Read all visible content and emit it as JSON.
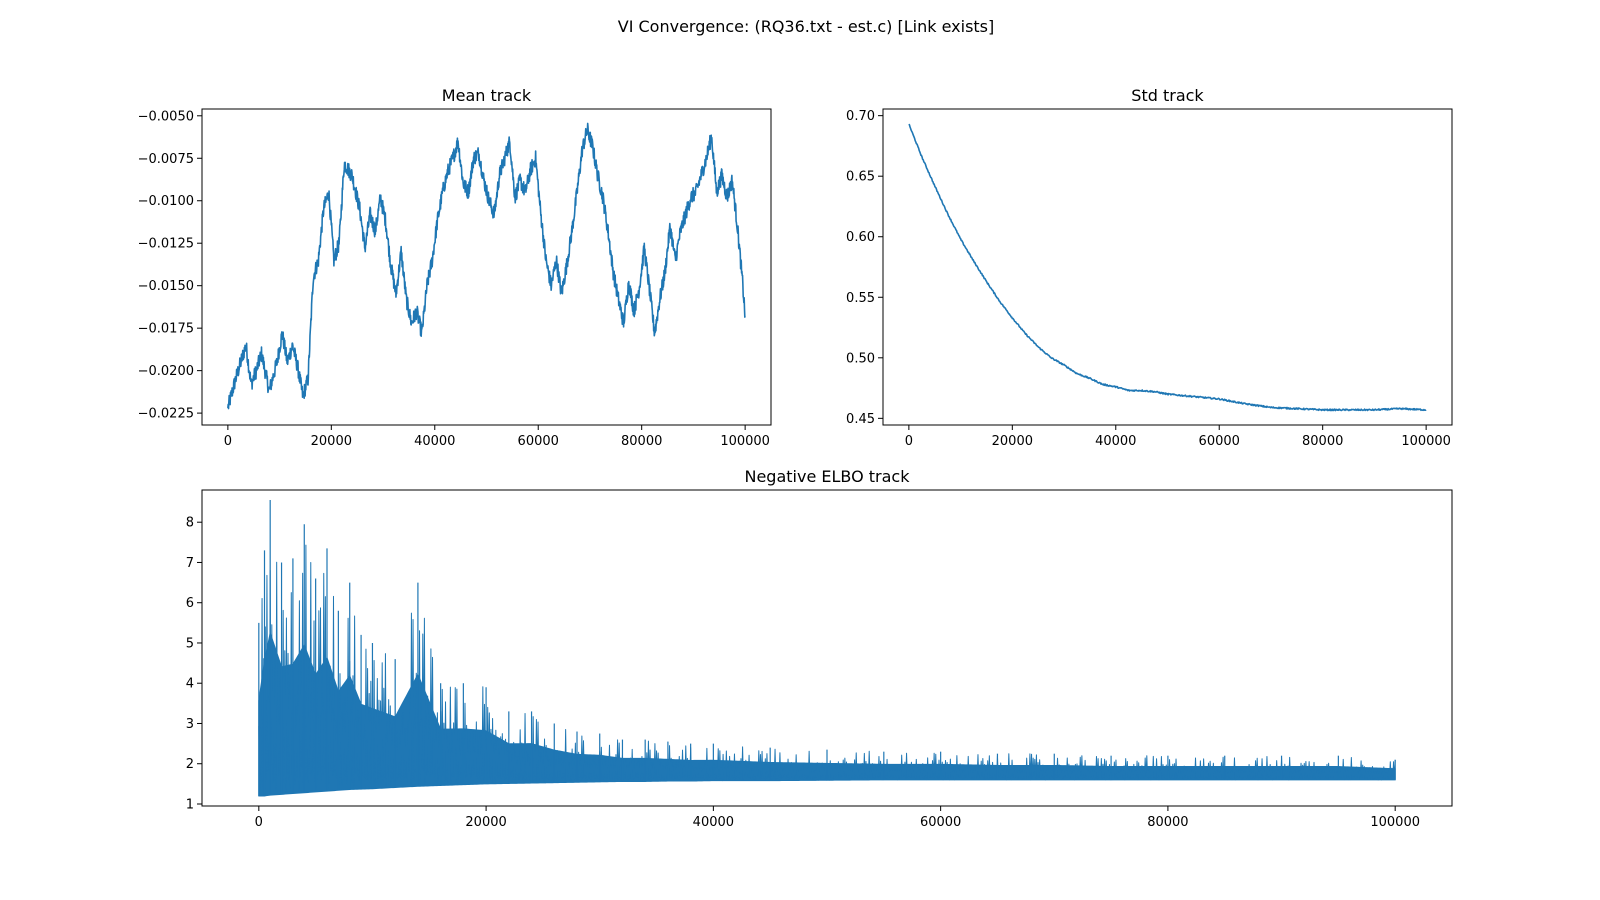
{
  "figure": {
    "title": "VI Convergence: (RQ36.txt - est.c) [Link exists]"
  },
  "colors": {
    "series": "#1f77b4",
    "axes": "#000000",
    "background": "#ffffff"
  },
  "chart_data": [
    {
      "id": "mean",
      "type": "line",
      "title": "Mean track",
      "xlabel": "",
      "ylabel": "",
      "xlim": [
        -5000,
        105000
      ],
      "ylim": [
        -0.0232,
        -0.0046
      ],
      "xticks": [
        0,
        20000,
        40000,
        60000,
        80000,
        100000
      ],
      "xtick_labels": [
        "0",
        "20000",
        "40000",
        "60000",
        "80000",
        "100000"
      ],
      "yticks": [
        -0.0225,
        -0.02,
        -0.0175,
        -0.015,
        -0.0125,
        -0.01,
        -0.0075,
        -0.005
      ],
      "ytick_labels": [
        "−0.0225",
        "−0.0200",
        "−0.0175",
        "−0.0150",
        "−0.0125",
        "−0.0100",
        "−0.0075",
        "−0.0050"
      ],
      "grid": false,
      "series": [
        {
          "x": [
            0,
            1500,
            2500,
            3500,
            4500,
            5500,
            6500,
            8000,
            9500,
            10500,
            11500,
            12500,
            13500,
            14500,
            15500,
            16500,
            17500,
            18500,
            19500,
            20500,
            21500,
            22500,
            24000,
            25500,
            26500,
            27500,
            28500,
            29500,
            30500,
            31500,
            32500,
            33500,
            34500,
            35500,
            36500,
            37500,
            38500,
            39500,
            40500,
            41500,
            42500,
            43500,
            44500,
            45500,
            46500,
            47500,
            48500,
            49500,
            50500,
            51500,
            52500,
            53500,
            54500,
            55500,
            56500,
            57500,
            58500,
            59500,
            60500,
            61500,
            62500,
            63500,
            64500,
            65500,
            66500,
            67500,
            68500,
            69500,
            70500,
            71500,
            72500,
            73500,
            74500,
            75500,
            76500,
            77500,
            78500,
            79500,
            80500,
            81500,
            82500,
            83500,
            84500,
            85500,
            86500,
            87500,
            88500,
            89500,
            90500,
            91500,
            92500,
            93500,
            94500,
            95500,
            96500,
            97500,
            98500,
            99500,
            100000
          ],
          "y": [
            -0.0222,
            -0.0205,
            -0.0195,
            -0.0185,
            -0.0208,
            -0.02,
            -0.019,
            -0.0212,
            -0.0195,
            -0.0178,
            -0.0195,
            -0.0185,
            -0.0198,
            -0.0215,
            -0.0205,
            -0.0145,
            -0.0135,
            -0.0105,
            -0.0095,
            -0.0135,
            -0.0125,
            -0.0078,
            -0.0085,
            -0.0105,
            -0.0128,
            -0.0108,
            -0.0118,
            -0.0098,
            -0.0112,
            -0.0138,
            -0.0155,
            -0.013,
            -0.0158,
            -0.0172,
            -0.0165,
            -0.0178,
            -0.015,
            -0.0135,
            -0.0112,
            -0.0095,
            -0.0083,
            -0.0075,
            -0.0065,
            -0.009,
            -0.0095,
            -0.0075,
            -0.0072,
            -0.0088,
            -0.01,
            -0.0108,
            -0.0085,
            -0.0075,
            -0.0065,
            -0.0098,
            -0.0088,
            -0.0095,
            -0.0082,
            -0.0075,
            -0.0108,
            -0.0135,
            -0.015,
            -0.0135,
            -0.0155,
            -0.0138,
            -0.0118,
            -0.0095,
            -0.007,
            -0.0058,
            -0.0068,
            -0.0085,
            -0.0098,
            -0.0118,
            -0.0142,
            -0.0158,
            -0.0172,
            -0.0148,
            -0.0165,
            -0.0152,
            -0.0128,
            -0.0152,
            -0.0178,
            -0.0158,
            -0.0142,
            -0.0115,
            -0.0135,
            -0.0118,
            -0.0108,
            -0.0098,
            -0.0095,
            -0.0085,
            -0.0075,
            -0.0062,
            -0.0095,
            -0.0085,
            -0.0098,
            -0.0088,
            -0.0115,
            -0.0148,
            -0.0168
          ]
        }
      ]
    },
    {
      "id": "std",
      "type": "line",
      "title": "Std track",
      "xlabel": "",
      "ylabel": "",
      "xlim": [
        -5000,
        105000
      ],
      "ylim": [
        0.4445,
        0.7055
      ],
      "xticks": [
        0,
        20000,
        40000,
        60000,
        80000,
        100000
      ],
      "xtick_labels": [
        "0",
        "20000",
        "40000",
        "60000",
        "80000",
        "100000"
      ],
      "yticks": [
        0.45,
        0.5,
        0.55,
        0.6,
        0.65,
        0.7
      ],
      "ytick_labels": [
        "0.45",
        "0.50",
        "0.55",
        "0.60",
        "0.65",
        "0.70"
      ],
      "grid": false,
      "series": [
        {
          "x": [
            0,
            2500,
            5000,
            7500,
            10000,
            12500,
            15000,
            17500,
            20000,
            22500,
            25000,
            27500,
            30000,
            32500,
            35000,
            37500,
            40000,
            42500,
            45000,
            47500,
            50000,
            55000,
            60000,
            65000,
            70000,
            75000,
            80000,
            85000,
            90000,
            95000,
            100000
          ],
          "y": [
            0.693,
            0.666,
            0.642,
            0.619,
            0.598,
            0.58,
            0.563,
            0.547,
            0.533,
            0.52,
            0.509,
            0.5,
            0.494,
            0.487,
            0.483,
            0.478,
            0.476,
            0.473,
            0.473,
            0.472,
            0.47,
            0.468,
            0.466,
            0.462,
            0.459,
            0.458,
            0.457,
            0.457,
            0.457,
            0.458,
            0.457
          ]
        }
      ]
    },
    {
      "id": "elbo",
      "type": "area",
      "title": "Negative ELBO track",
      "xlabel": "",
      "ylabel": "",
      "xlim": [
        -5000,
        105000
      ],
      "ylim": [
        0.95,
        8.8
      ],
      "xticks": [
        0,
        20000,
        40000,
        60000,
        80000,
        100000
      ],
      "xtick_labels": [
        "0",
        "20000",
        "40000",
        "60000",
        "80000",
        "100000"
      ],
      "yticks": [
        1,
        2,
        3,
        4,
        5,
        6,
        7,
        8
      ],
      "ytick_labels": [
        "1",
        "2",
        "3",
        "4",
        "5",
        "6",
        "7",
        "8"
      ],
      "grid": false,
      "series": [
        {
          "name": "",
          "x": [
            0,
            500,
            1000,
            2000,
            3000,
            4000,
            5000,
            6000,
            7000,
            8000,
            9000,
            10000,
            12000,
            14000,
            16000,
            18000,
            20000,
            22000,
            24000,
            26000,
            28000,
            30000,
            32000,
            34000,
            36000,
            38000,
            40000,
            45000,
            50000,
            55000,
            60000,
            65000,
            70000,
            75000,
            80000,
            85000,
            90000,
            95000,
            100000
          ],
          "upper": [
            5.5,
            7.3,
            8.55,
            7.0,
            7.1,
            7.95,
            6.6,
            7.35,
            5.8,
            6.5,
            5.2,
            5.0,
            4.6,
            6.5,
            4.0,
            4.0,
            3.9,
            3.3,
            3.3,
            3.0,
            2.8,
            2.75,
            2.6,
            2.6,
            2.55,
            2.5,
            2.5,
            2.4,
            2.35,
            2.3,
            2.3,
            2.25,
            2.25,
            2.2,
            2.2,
            2.2,
            2.2,
            2.2,
            2.1
          ],
          "lower": [
            1.2,
            1.2,
            1.22,
            1.24,
            1.26,
            1.28,
            1.3,
            1.32,
            1.34,
            1.36,
            1.37,
            1.38,
            1.41,
            1.44,
            1.46,
            1.48,
            1.5,
            1.51,
            1.52,
            1.53,
            1.54,
            1.55,
            1.56,
            1.56,
            1.57,
            1.57,
            1.58,
            1.58,
            1.59,
            1.6,
            1.6,
            1.6,
            1.6,
            1.6,
            1.6,
            1.6,
            1.6,
            1.6,
            1.6
          ]
        }
      ]
    }
  ]
}
